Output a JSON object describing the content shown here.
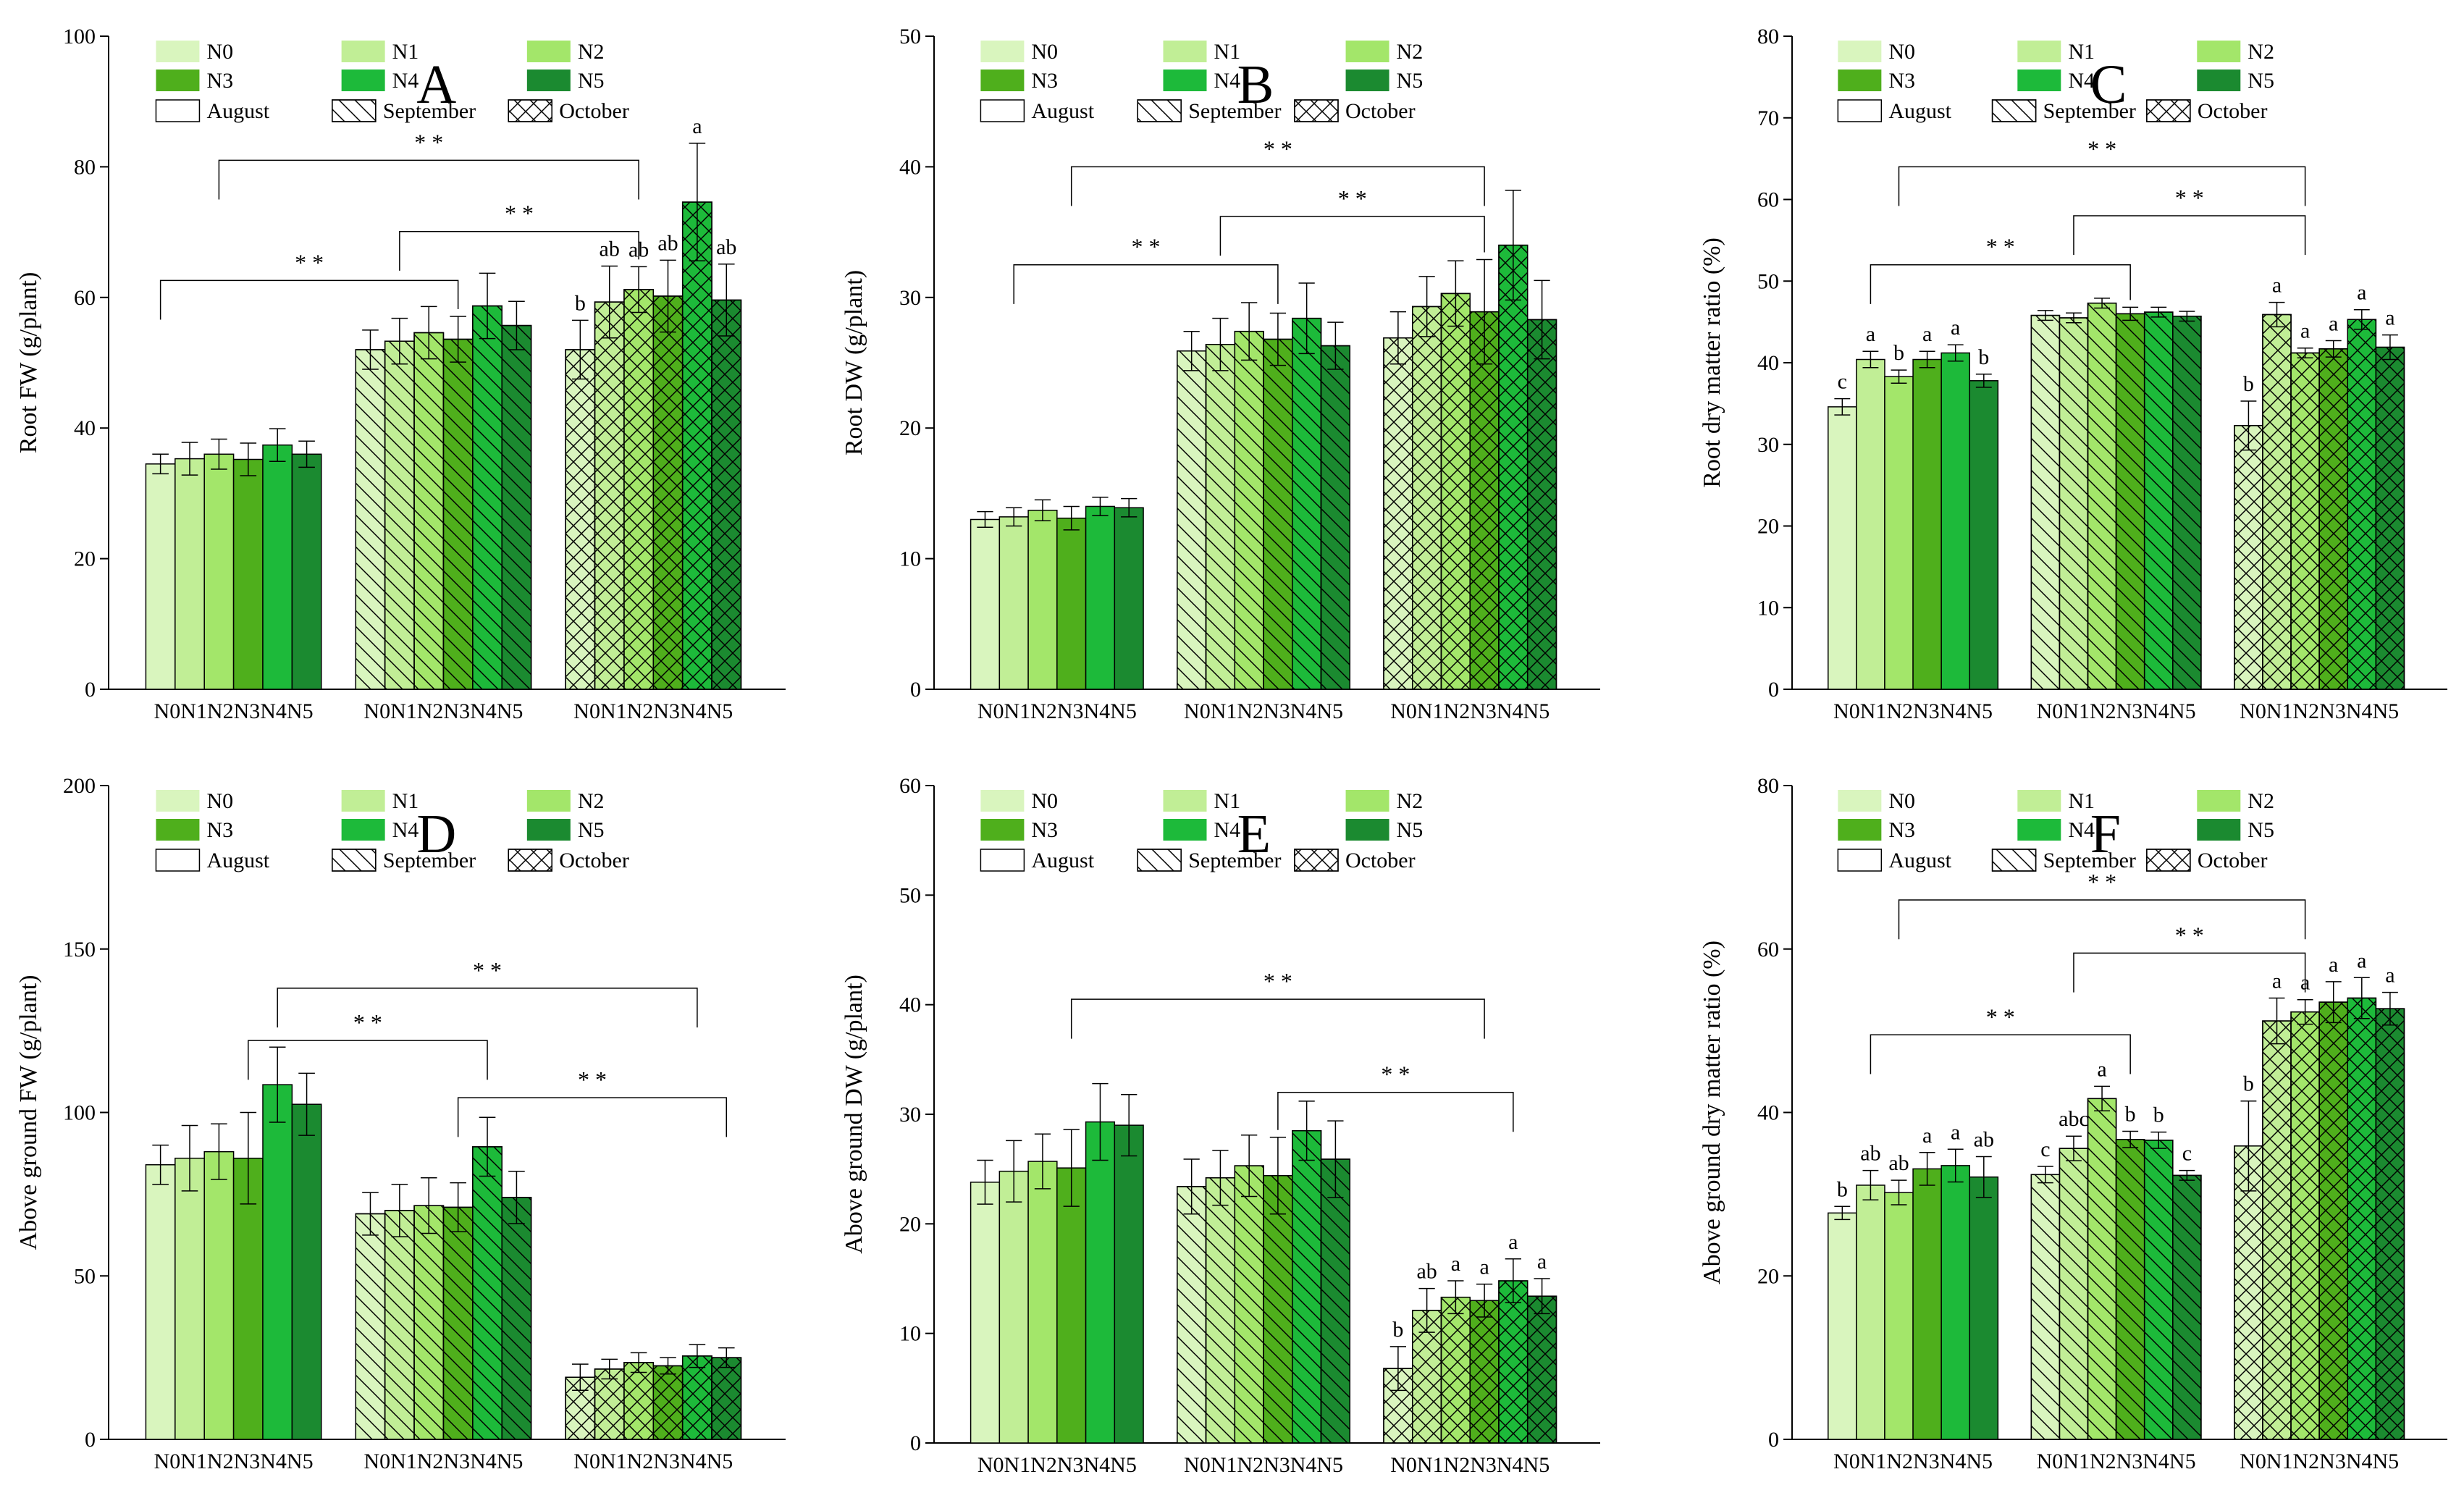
{
  "colors": {
    "N0": "#d9f5be",
    "N1": "#c1ee96",
    "N2": "#a3e66a",
    "N3": "#4faf1c",
    "N4": "#1dba3a",
    "N5": "#1b8a30"
  },
  "chart_data": [
    {
      "id": "A",
      "type": "bar",
      "panel_letter": "A",
      "ylabel": "Root FW (g/plant)",
      "ylim": [
        0,
        100
      ],
      "yticks": [
        0,
        20,
        40,
        60,
        80,
        100
      ],
      "groups": [
        "August",
        "September",
        "October"
      ],
      "categories": [
        "N0",
        "N1",
        "N2",
        "N3",
        "N4",
        "N5"
      ],
      "group_tick_label": "N0N1N2N3N4N5",
      "legend_series": [
        "N0",
        "N1",
        "N2",
        "N3",
        "N4",
        "N5"
      ],
      "legend_patterns": [
        "August",
        "September",
        "October"
      ],
      "values": [
        [
          34.5,
          35.3,
          36.0,
          35.2,
          37.4,
          36.0
        ],
        [
          52.0,
          53.3,
          54.6,
          53.6,
          58.7,
          55.7
        ],
        [
          52.0,
          59.3,
          61.2,
          60.2,
          74.6,
          59.6
        ]
      ],
      "errors": [
        [
          1.5,
          2.5,
          2.3,
          2.5,
          2.5,
          2.0
        ],
        [
          3.0,
          3.5,
          4.0,
          3.5,
          5.0,
          3.7
        ],
        [
          4.5,
          5.5,
          3.5,
          5.5,
          9.0,
          5.5
        ]
      ],
      "letters": [
        [
          "",
          "",
          "",
          "",
          "",
          ""
        ],
        [
          "",
          "",
          "",
          "",
          "",
          ""
        ],
        [
          "b",
          "ab",
          "ab",
          "ab",
          "a",
          "ab"
        ]
      ],
      "sig_brackets": [
        {
          "from": [
            0,
            0
          ],
          "to": [
            1,
            3
          ],
          "level": 62.6,
          "label": "* *"
        },
        {
          "from": [
            1,
            1
          ],
          "to": [
            2,
            2
          ],
          "level": 70.1,
          "label": "* *"
        },
        {
          "from": [
            0,
            2
          ],
          "to": [
            2,
            2
          ],
          "level": 81.0,
          "label": "* *"
        }
      ]
    },
    {
      "id": "B",
      "type": "bar",
      "panel_letter": "B",
      "ylabel": "Root DW (g/plant)",
      "ylim": [
        0,
        50
      ],
      "yticks": [
        0,
        10,
        20,
        30,
        40,
        50
      ],
      "groups": [
        "August",
        "September",
        "October"
      ],
      "categories": [
        "N0",
        "N1",
        "N2",
        "N3",
        "N4",
        "N5"
      ],
      "group_tick_label": "N0N1N2N3N4N5",
      "legend_series": [
        "N0",
        "N1",
        "N2",
        "N3",
        "N4",
        "N5"
      ],
      "legend_patterns": [
        "August",
        "September",
        "October"
      ],
      "values": [
        [
          13.0,
          13.2,
          13.7,
          13.1,
          14.0,
          13.9
        ],
        [
          25.9,
          26.4,
          27.4,
          26.8,
          28.4,
          26.3
        ],
        [
          26.9,
          29.3,
          30.3,
          28.9,
          34.0,
          28.3
        ]
      ],
      "errors": [
        [
          0.6,
          0.7,
          0.8,
          0.9,
          0.7,
          0.7
        ],
        [
          1.5,
          2.0,
          2.2,
          2.0,
          2.7,
          1.8
        ],
        [
          2.0,
          2.3,
          2.5,
          4.0,
          4.2,
          3.0
        ]
      ],
      "letters": [
        [
          "",
          "",
          "",
          "",
          "",
          ""
        ],
        [
          "",
          "",
          "",
          "",
          "",
          ""
        ],
        [
          "",
          "",
          "",
          "",
          "",
          ""
        ]
      ],
      "sig_brackets": [
        {
          "from": [
            0,
            1
          ],
          "to": [
            1,
            3
          ],
          "level": 32.5,
          "label": "* *"
        },
        {
          "from": [
            1,
            1
          ],
          "to": [
            2,
            3
          ],
          "level": 36.2,
          "label": "* *"
        },
        {
          "from": [
            0,
            3
          ],
          "to": [
            2,
            3
          ],
          "level": 40.0,
          "label": "* *"
        }
      ]
    },
    {
      "id": "C",
      "type": "bar",
      "panel_letter": "C",
      "ylabel": "Root dry matter ratio (%)",
      "ylim": [
        0,
        80
      ],
      "yticks": [
        0,
        10,
        20,
        30,
        40,
        50,
        60,
        70,
        80
      ],
      "groups": [
        "August",
        "September",
        "October"
      ],
      "categories": [
        "N0",
        "N1",
        "N2",
        "N3",
        "N4",
        "N5"
      ],
      "group_tick_label": "N0N1N2N3N4N5",
      "legend_series": [
        "N0",
        "N1",
        "N2",
        "N3",
        "N4",
        "N5"
      ],
      "legend_patterns": [
        "August",
        "September",
        "October"
      ],
      "values": [
        [
          34.6,
          40.4,
          38.3,
          40.4,
          41.2,
          37.8
        ],
        [
          45.8,
          45.5,
          47.3,
          46.0,
          46.2,
          45.7
        ],
        [
          32.3,
          45.9,
          41.2,
          41.7,
          45.3,
          41.9
        ]
      ],
      "errors": [
        [
          1.0,
          1.0,
          0.8,
          1.0,
          1.0,
          0.8
        ],
        [
          0.6,
          0.6,
          0.6,
          0.8,
          0.6,
          0.6
        ],
        [
          3.0,
          1.5,
          0.6,
          1.0,
          1.2,
          1.5
        ]
      ],
      "letters": [
        [
          "c",
          "a",
          "b",
          "a",
          "a",
          "b"
        ],
        [
          "",
          "",
          "",
          "",
          "",
          ""
        ],
        [
          "b",
          "a",
          "a",
          "a",
          "a",
          "a"
        ]
      ],
      "sig_brackets": [
        {
          "from": [
            0,
            1
          ],
          "to": [
            1,
            3
          ],
          "level": 52.0,
          "label": "* *"
        },
        {
          "from": [
            1,
            1
          ],
          "to": [
            2,
            2
          ],
          "level": 58.0,
          "label": "* *"
        },
        {
          "from": [
            0,
            2
          ],
          "to": [
            2,
            2
          ],
          "level": 64.0,
          "label": "* *"
        }
      ]
    },
    {
      "id": "D",
      "type": "bar",
      "panel_letter": "D",
      "ylabel": "Above ground FW (g/plant)",
      "ylim": [
        0,
        200
      ],
      "yticks": [
        0,
        50,
        100,
        150,
        200
      ],
      "groups": [
        "August",
        "September",
        "October"
      ],
      "categories": [
        "N0",
        "N1",
        "N2",
        "N3",
        "N4",
        "N5"
      ],
      "group_tick_label": "N0N1N2N3N4N5",
      "legend_series": [
        "N0",
        "N1",
        "N2",
        "N3",
        "N4",
        "N5"
      ],
      "legend_patterns": [
        "August",
        "September",
        "October"
      ],
      "values": [
        [
          84.0,
          86.0,
          88.0,
          86.0,
          108.5,
          102.5
        ],
        [
          69.0,
          70.0,
          71.5,
          71.0,
          89.5,
          74.0
        ],
        [
          19.0,
          21.5,
          23.5,
          22.5,
          25.5,
          25.0
        ]
      ],
      "errors": [
        [
          6.0,
          10.0,
          8.5,
          14.0,
          11.5,
          9.5
        ],
        [
          6.5,
          8.0,
          8.5,
          7.5,
          9.0,
          8.0
        ],
        [
          4.0,
          3.0,
          3.0,
          2.5,
          3.5,
          3.0
        ]
      ],
      "letters": [
        [
          "",
          "",
          "",
          "",
          "",
          ""
        ],
        [
          "",
          "",
          "",
          "",
          "",
          ""
        ],
        [
          "",
          "",
          "",
          "",
          "",
          ""
        ]
      ],
      "sig_brackets": [
        {
          "from": [
            0,
            3
          ],
          "to": [
            1,
            4
          ],
          "level": 122.0,
          "label": "* *"
        },
        {
          "from": [
            1,
            3
          ],
          "to": [
            2,
            5
          ],
          "level": 104.5,
          "label": "* *"
        },
        {
          "from": [
            0,
            4
          ],
          "to": [
            2,
            4
          ],
          "level": 138.0,
          "label": "* *"
        }
      ]
    },
    {
      "id": "E",
      "type": "bar",
      "panel_letter": "E",
      "ylabel": "Above ground DW (g/plant)",
      "ylim": [
        0,
        60
      ],
      "yticks": [
        0,
        10,
        20,
        30,
        40,
        50,
        60
      ],
      "groups": [
        "August",
        "September",
        "October"
      ],
      "categories": [
        "N0",
        "N1",
        "N2",
        "N3",
        "N4",
        "N5"
      ],
      "group_tick_label": "N0N1N2N3N4N5",
      "legend_series": [
        "N0",
        "N1",
        "N2",
        "N3",
        "N4",
        "N5"
      ],
      "legend_patterns": [
        "August",
        "September",
        "October"
      ],
      "values": [
        [
          23.8,
          24.8,
          25.7,
          25.1,
          29.3,
          29.0
        ],
        [
          23.4,
          24.2,
          25.3,
          24.4,
          28.5,
          25.9
        ],
        [
          6.8,
          12.1,
          13.3,
          13.0,
          14.8,
          13.4
        ]
      ],
      "errors": [
        [
          2.0,
          2.8,
          2.5,
          3.5,
          3.5,
          2.8
        ],
        [
          2.5,
          2.5,
          2.8,
          3.5,
          2.7,
          3.5
        ],
        [
          2.0,
          2.0,
          1.5,
          1.5,
          2.0,
          1.6
        ]
      ],
      "letters": [
        [
          "",
          "",
          "",
          "",
          "",
          ""
        ],
        [
          "",
          "",
          "",
          "",
          "",
          ""
        ],
        [
          "b",
          "ab",
          "a",
          "a",
          "a",
          "a"
        ]
      ],
      "sig_brackets": [
        {
          "from": [
            1,
            3
          ],
          "to": [
            2,
            4
          ],
          "level": 32.0,
          "label": "* *"
        },
        {
          "from": [
            0,
            3
          ],
          "to": [
            2,
            3
          ],
          "level": 40.5,
          "label": "* *"
        }
      ]
    },
    {
      "id": "F",
      "type": "bar",
      "panel_letter": "F",
      "ylabel": "Above ground dry matter ratio (%)",
      "ylim": [
        0,
        80
      ],
      "yticks": [
        0,
        20,
        40,
        60,
        80
      ],
      "groups": [
        "August",
        "September",
        "October"
      ],
      "categories": [
        "N0",
        "N1",
        "N2",
        "N3",
        "N4",
        "N5"
      ],
      "group_tick_label": "N0N1N2N3N4N5",
      "legend_series": [
        "N0",
        "N1",
        "N2",
        "N3",
        "N4",
        "N5"
      ],
      "legend_patterns": [
        "August",
        "September",
        "October"
      ],
      "values": [
        [
          27.7,
          31.1,
          30.2,
          33.1,
          33.5,
          32.1
        ],
        [
          32.4,
          35.6,
          41.7,
          36.7,
          36.6,
          32.3
        ],
        [
          35.9,
          51.2,
          52.3,
          53.5,
          54.0,
          52.7
        ]
      ],
      "errors": [
        [
          0.8,
          1.8,
          1.5,
          2.0,
          2.0,
          2.5
        ],
        [
          1.0,
          1.5,
          1.5,
          1.0,
          1.0,
          0.6
        ],
        [
          5.5,
          2.8,
          1.5,
          2.5,
          2.5,
          2.0
        ]
      ],
      "letters": [
        [
          "b",
          "ab",
          "ab",
          "a",
          "a",
          "ab"
        ],
        [
          "c",
          "abc",
          "a",
          "b",
          "b",
          "c"
        ],
        [
          "b",
          "a",
          "a",
          "a",
          "a",
          "a"
        ]
      ],
      "sig_brackets": [
        {
          "from": [
            0,
            1
          ],
          "to": [
            1,
            3
          ],
          "level": 49.5,
          "label": "* *"
        },
        {
          "from": [
            1,
            1
          ],
          "to": [
            2,
            2
          ],
          "level": 59.5,
          "label": "* *"
        },
        {
          "from": [
            0,
            2
          ],
          "to": [
            2,
            2
          ],
          "level": 66.0,
          "label": "* *"
        }
      ]
    }
  ]
}
